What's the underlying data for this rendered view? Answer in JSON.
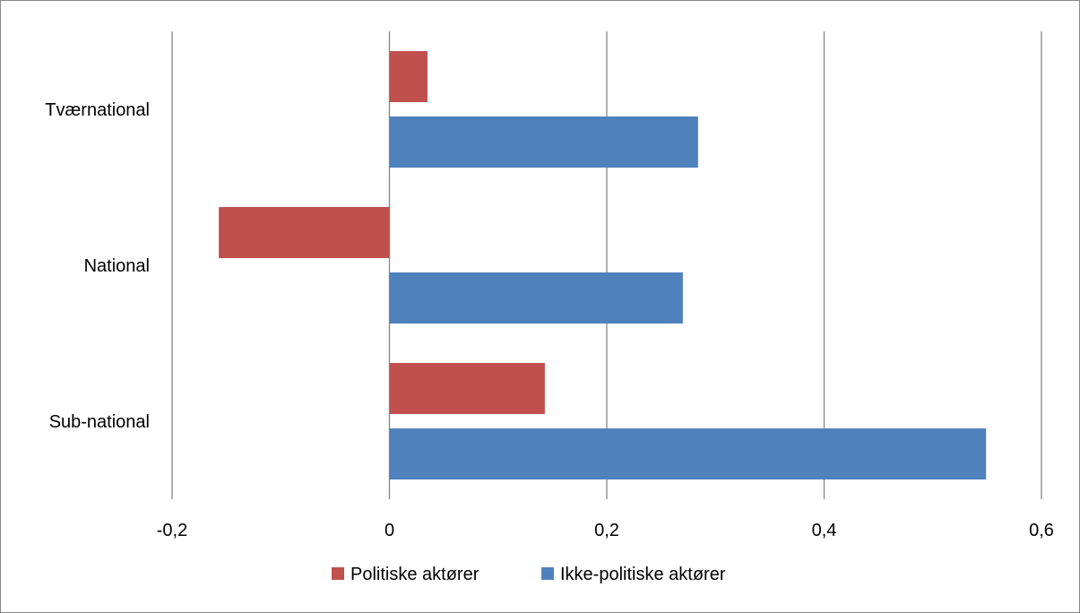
{
  "chart_data": {
    "type": "bar",
    "orientation": "horizontal",
    "categories": [
      "Tværnational",
      "National",
      "Sub-national"
    ],
    "series": [
      {
        "name": "Politiske aktører",
        "color": "#C0504D",
        "values": [
          0.035,
          -0.157,
          0.143
        ]
      },
      {
        "name": "Ikke-politiske aktører",
        "color": "#4F81BD",
        "values": [
          0.284,
          0.27,
          0.549
        ]
      }
    ],
    "xlim": [
      -0.2,
      0.6
    ],
    "xticks": [
      -0.2,
      0,
      0.2,
      0.4,
      0.6
    ],
    "xtick_labels": [
      "-0,2",
      "0",
      "0,2",
      "0,4",
      "0,6"
    ],
    "grid": "vertical",
    "legend_position": "bottom",
    "title": "",
    "xlabel": "",
    "ylabel": ""
  }
}
